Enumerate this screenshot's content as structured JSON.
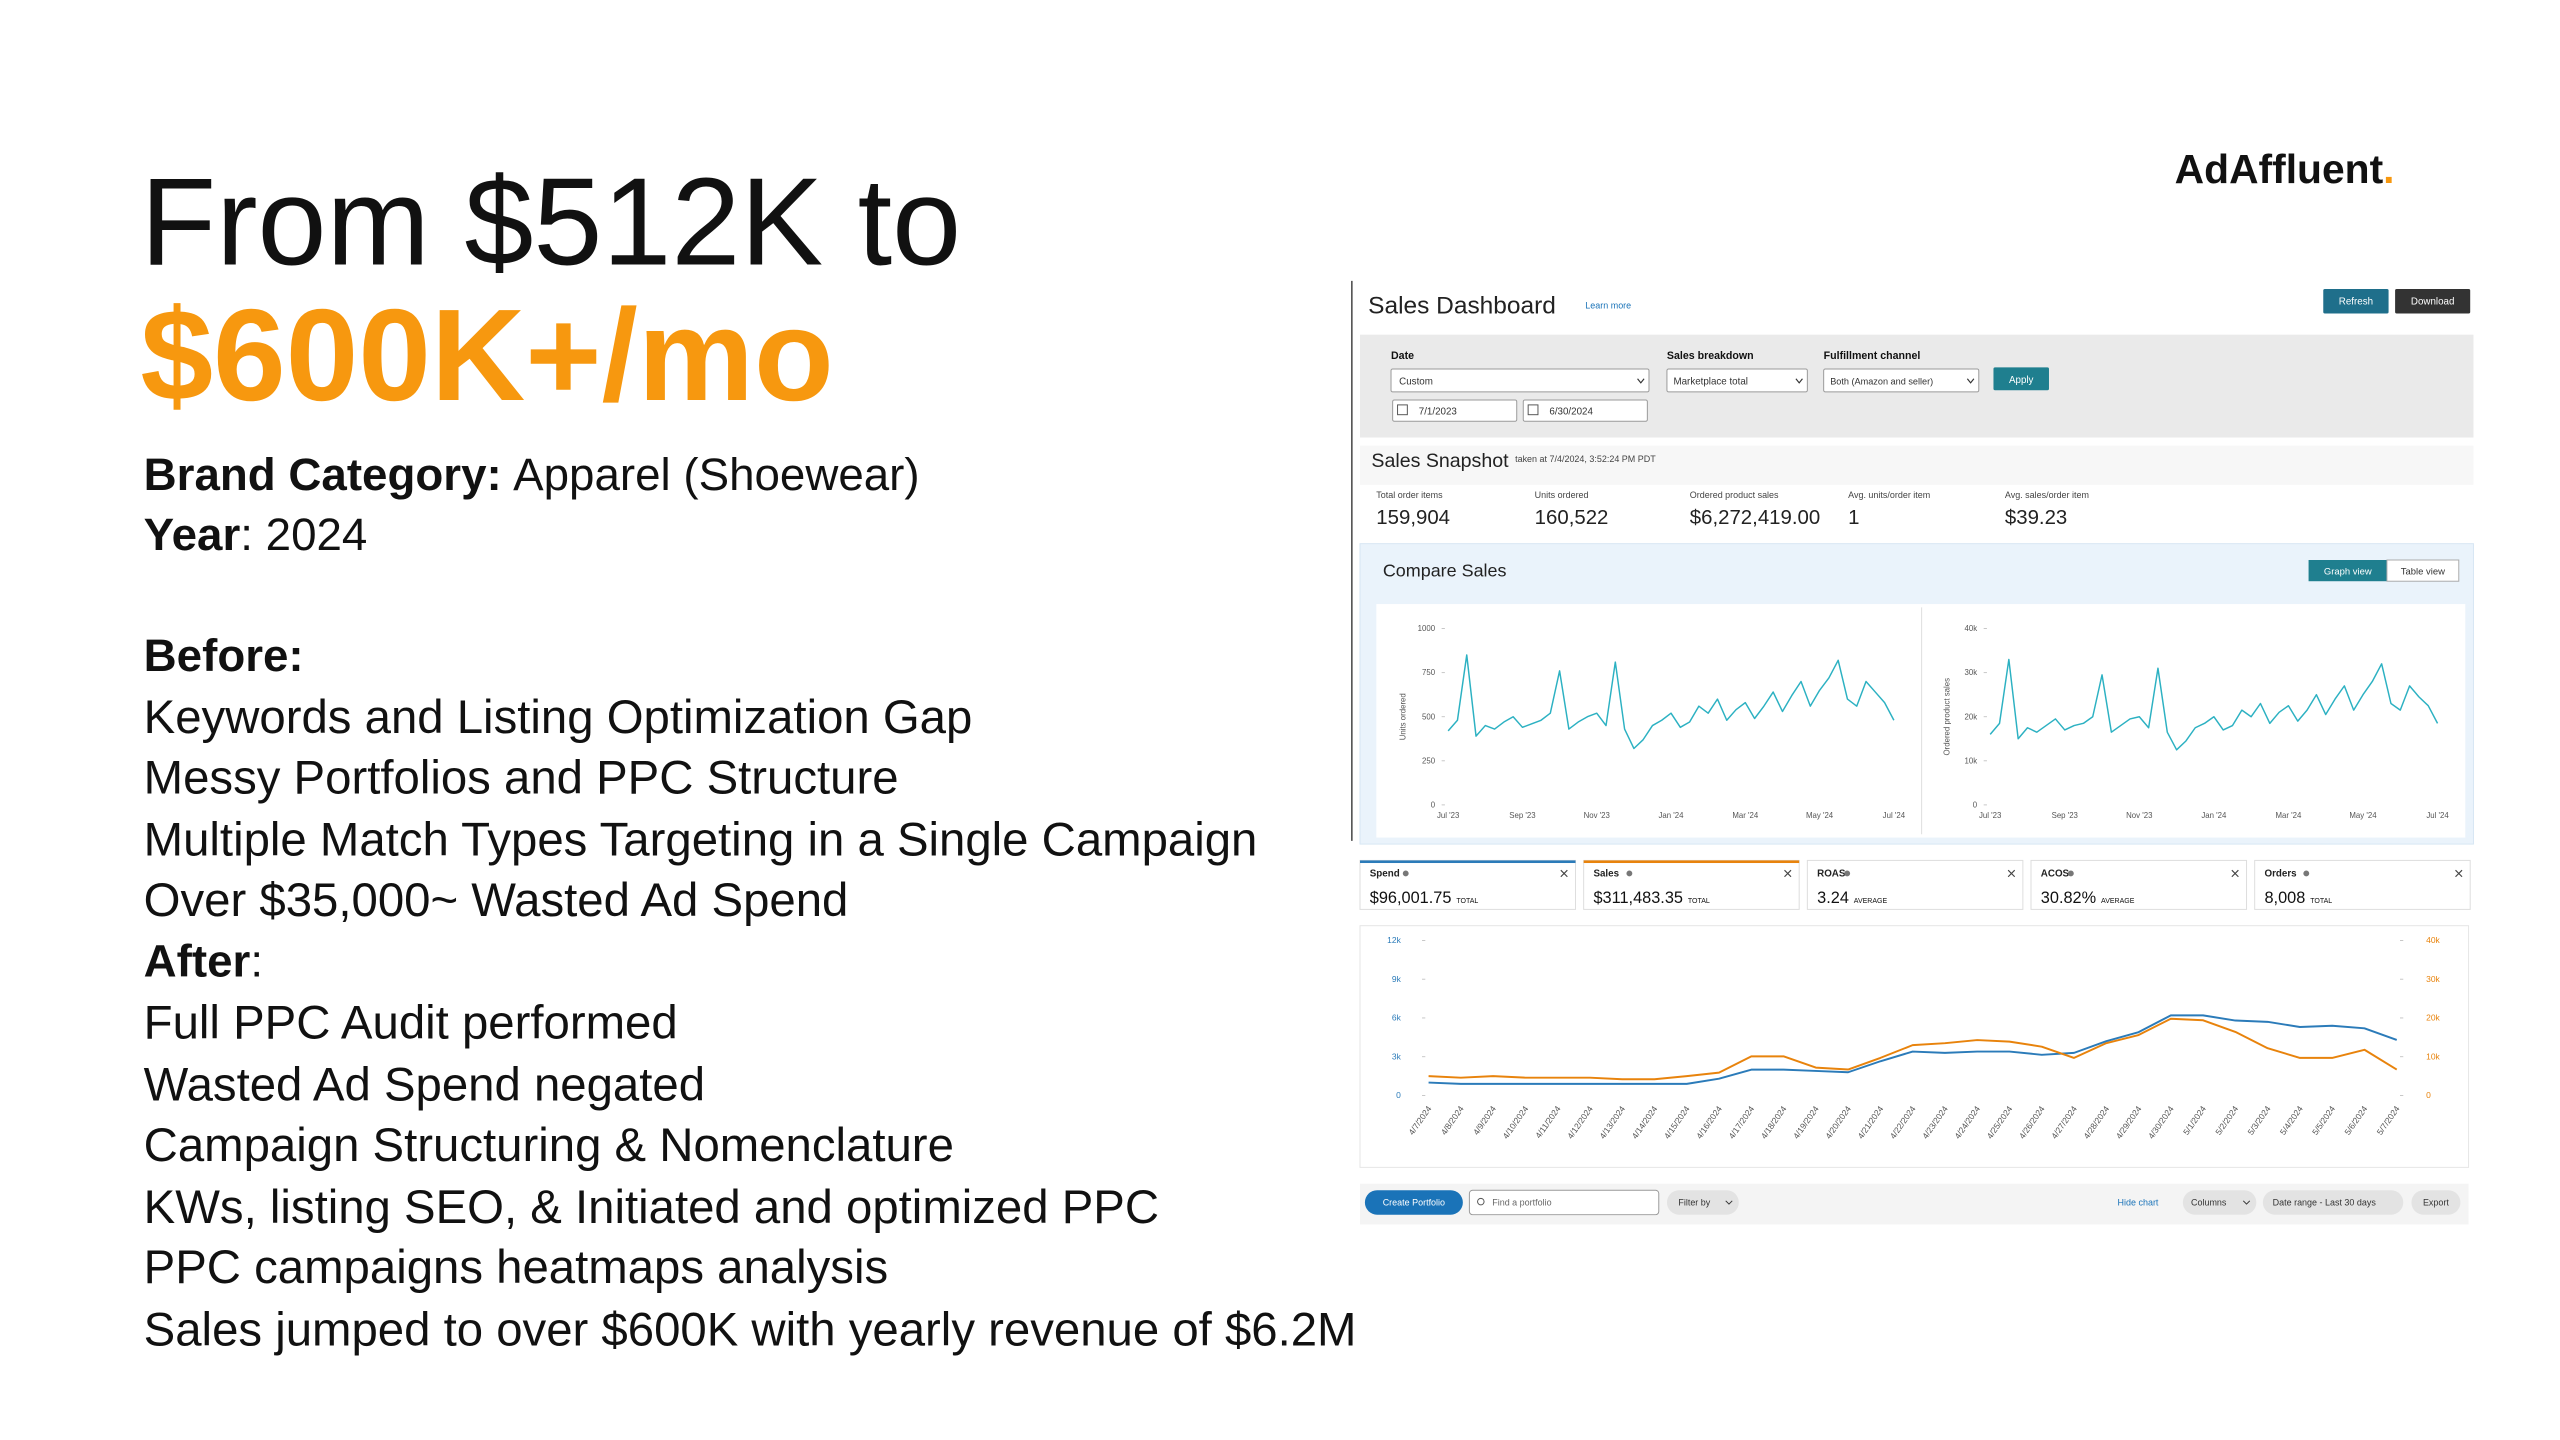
{
  "brand": {
    "name": "AdAffluent",
    "dot": "."
  },
  "headline": {
    "line1": "From $512K to",
    "line2": "$600K+/mo"
  },
  "details": [
    {
      "label": "Brand Category:",
      "text": "Apparel (Shoewear)"
    },
    {
      "label": "Year",
      "text": ": 2024"
    }
  ],
  "before": {
    "heading": "Before:",
    "items": [
      "Keywords and Listing Optimization Gap",
      "Messy Portfolios and PPC Structure",
      "Multiple Match Types Targeting in a Single Campaign",
      "Over $35,000~ Wasted Ad Spend"
    ]
  },
  "after": {
    "heading": "After",
    "suffix": ":",
    "items": [
      "Full PPC Audit performed",
      "Wasted Ad Spend negated",
      "Campaign Structuring & Nomenclature",
      "KWs, listing SEO, & Initiated and optimized PPC",
      "PPC campaigns heatmaps analysis",
      "Sales jumped to over $600K with yearly revenue of $6.2M"
    ]
  },
  "dashboard": {
    "title": "Sales Dashboard",
    "learn_more": "Learn more",
    "buttons": [
      "Refresh",
      "Download"
    ],
    "filters": {
      "date_label": "Date",
      "date_mode": "Custom",
      "start": "7/1/2023",
      "end": "6/30/2024",
      "breakdown_label": "Sales breakdown",
      "breakdown": "Marketplace total",
      "channel_label": "Fulfillment channel",
      "channel": "Both (Amazon and seller)",
      "apply": "Apply"
    },
    "snapshot": {
      "title": "Sales Snapshot",
      "taken": "taken at 7/4/2024, 3:52:24 PM PDT",
      "metrics": [
        {
          "label": "Total order items",
          "value": "159,904"
        },
        {
          "label": "Units ordered",
          "value": "160,522"
        },
        {
          "label": "Ordered product sales",
          "value": "$6,272,419.00"
        },
        {
          "label": "Avg. units/order item",
          "value": "1"
        },
        {
          "label": "Avg. sales/order item",
          "value": "$39.23"
        }
      ]
    },
    "compare": {
      "title": "Compare Sales",
      "views": [
        "Graph view",
        "Table view"
      ]
    },
    "tiles": [
      {
        "label": "Spend",
        "value": "$96,001.75",
        "note": "TOTAL"
      },
      {
        "label": "Sales",
        "value": "$311,483.35",
        "note": "TOTAL"
      },
      {
        "label": "ROAS",
        "value": "3.24",
        "note": "AVERAGE"
      },
      {
        "label": "ACOS",
        "value": "30.82%",
        "note": "AVERAGE"
      },
      {
        "label": "Orders",
        "value": "8,008",
        "note": "TOTAL"
      }
    ],
    "toolbar": {
      "create": "Create Portfolio",
      "search": "Find a portfolio",
      "filter": "Filter by",
      "hide": "Hide chart",
      "columns": "Columns",
      "range": "Date range - Last 30 days",
      "export": "Export"
    }
  },
  "chart_data": [
    {
      "type": "line",
      "ylabel": "Units ordered",
      "color": "#2cb1c2",
      "categories": [
        "Jul '23",
        null,
        null,
        null,
        null,
        null,
        null,
        null,
        "Sep '23",
        null,
        null,
        null,
        null,
        null,
        null,
        null,
        "Nov '23",
        null,
        null,
        null,
        null,
        null,
        null,
        null,
        "Jan '24",
        null,
        null,
        null,
        null,
        null,
        null,
        null,
        "Mar '24",
        null,
        null,
        null,
        null,
        null,
        null,
        null,
        "May '24",
        null,
        null,
        null,
        null,
        null,
        null,
        null,
        "Jul '24"
      ],
      "values": [
        420,
        480,
        850,
        390,
        450,
        430,
        470,
        500,
        440,
        460,
        480,
        520,
        760,
        430,
        470,
        500,
        520,
        450,
        810,
        430,
        320,
        370,
        450,
        480,
        520,
        440,
        470,
        560,
        520,
        600,
        480,
        540,
        580,
        490,
        560,
        640,
        530,
        620,
        700,
        560,
        650,
        720,
        820,
        600,
        560,
        700,
        640,
        580,
        480
      ],
      "ylim": [
        0,
        1000
      ],
      "yticks": [
        0,
        250,
        500,
        750,
        1000
      ]
    },
    {
      "type": "line",
      "ylabel": "Ordered product sales",
      "color": "#2cb1c2",
      "categories": [
        "Jul '23",
        null,
        null,
        null,
        null,
        null,
        null,
        null,
        "Sep '23",
        null,
        null,
        null,
        null,
        null,
        null,
        null,
        "Nov '23",
        null,
        null,
        null,
        null,
        null,
        null,
        null,
        "Jan '24",
        null,
        null,
        null,
        null,
        null,
        null,
        null,
        "Mar '24",
        null,
        null,
        null,
        null,
        null,
        null,
        null,
        "May '24",
        null,
        null,
        null,
        null,
        null,
        null,
        null,
        "Jul '24"
      ],
      "values": [
        16000,
        18500,
        33000,
        15000,
        17500,
        16500,
        18000,
        19500,
        17000,
        18000,
        18500,
        20000,
        29500,
        16500,
        18000,
        19500,
        20000,
        17500,
        31000,
        16500,
        12500,
        14500,
        17500,
        18500,
        20000,
        17000,
        18000,
        21500,
        20000,
        23000,
        18500,
        21000,
        22500,
        19000,
        21500,
        25000,
        20500,
        24000,
        27000,
        21500,
        25000,
        28000,
        32000,
        23000,
        21500,
        27000,
        24500,
        22500,
        18500
      ],
      "ylim": [
        0,
        40000
      ],
      "yticks": [
        0,
        {
          "value": 10000,
          "label": "10k"
        },
        {
          "value": 20000,
          "label": "20k"
        },
        {
          "value": 30000,
          "label": "30k"
        },
        {
          "value": 40000,
          "label": "40k"
        }
      ]
    },
    {
      "type": "line",
      "categories": [
        "4/7/2024",
        "4/8/2024",
        "4/9/2024",
        "4/10/2024",
        "4/11/2024",
        "4/12/2024",
        "4/13/2024",
        "4/14/2024",
        "4/15/2024",
        "4/16/2024",
        "4/17/2024",
        "4/18/2024",
        "4/19/2024",
        "4/20/2024",
        "4/21/2024",
        "4/22/2024",
        "4/23/2024",
        "4/24/2024",
        "4/25/2024",
        "4/26/2024",
        "4/27/2024",
        "4/28/2024",
        "4/29/2024",
        "4/30/2024",
        "5/1/2024",
        "5/2/2024",
        "5/3/2024",
        "5/4/2024",
        "5/5/2024",
        "5/6/2024",
        "5/7/2024"
      ],
      "series": [
        {
          "color": "#2b7bb9",
          "values": [
            1000,
            900,
            900,
            900,
            900,
            900,
            900,
            900,
            900,
            1300,
            2000,
            2000,
            1900,
            1800,
            2650,
            3400,
            3300,
            3400,
            3400,
            3150,
            3300,
            4200,
            4900,
            6200,
            6200,
            5800,
            5700,
            5300,
            5400,
            5200,
            4300
          ]
        },
        {
          "color": "#e8830c",
          "axis": "y2",
          "values": [
            5000,
            4600,
            5000,
            4600,
            4600,
            4600,
            4200,
            4200,
            5000,
            5900,
            10100,
            10100,
            7200,
            6700,
            9700,
            13000,
            13500,
            14300,
            13900,
            12600,
            9700,
            13500,
            15600,
            19800,
            19400,
            16400,
            12200,
            9700,
            9700,
            11800,
            6700
          ]
        }
      ],
      "ylim": [
        0,
        12000
      ],
      "yticks": [
        0,
        {
          "value": 3000,
          "label": "3k"
        },
        {
          "value": 6000,
          "label": "6k"
        },
        {
          "value": 9000,
          "label": "9k"
        },
        {
          "value": 12000,
          "label": "12k"
        }
      ],
      "y2lim": [
        0,
        40000
      ],
      "y2ticks": [
        0,
        {
          "value": 10000,
          "label": "10k"
        },
        {
          "value": 20000,
          "label": "20k"
        },
        {
          "value": 30000,
          "label": "30k"
        },
        {
          "value": 40000,
          "label": "40k"
        }
      ]
    }
  ]
}
